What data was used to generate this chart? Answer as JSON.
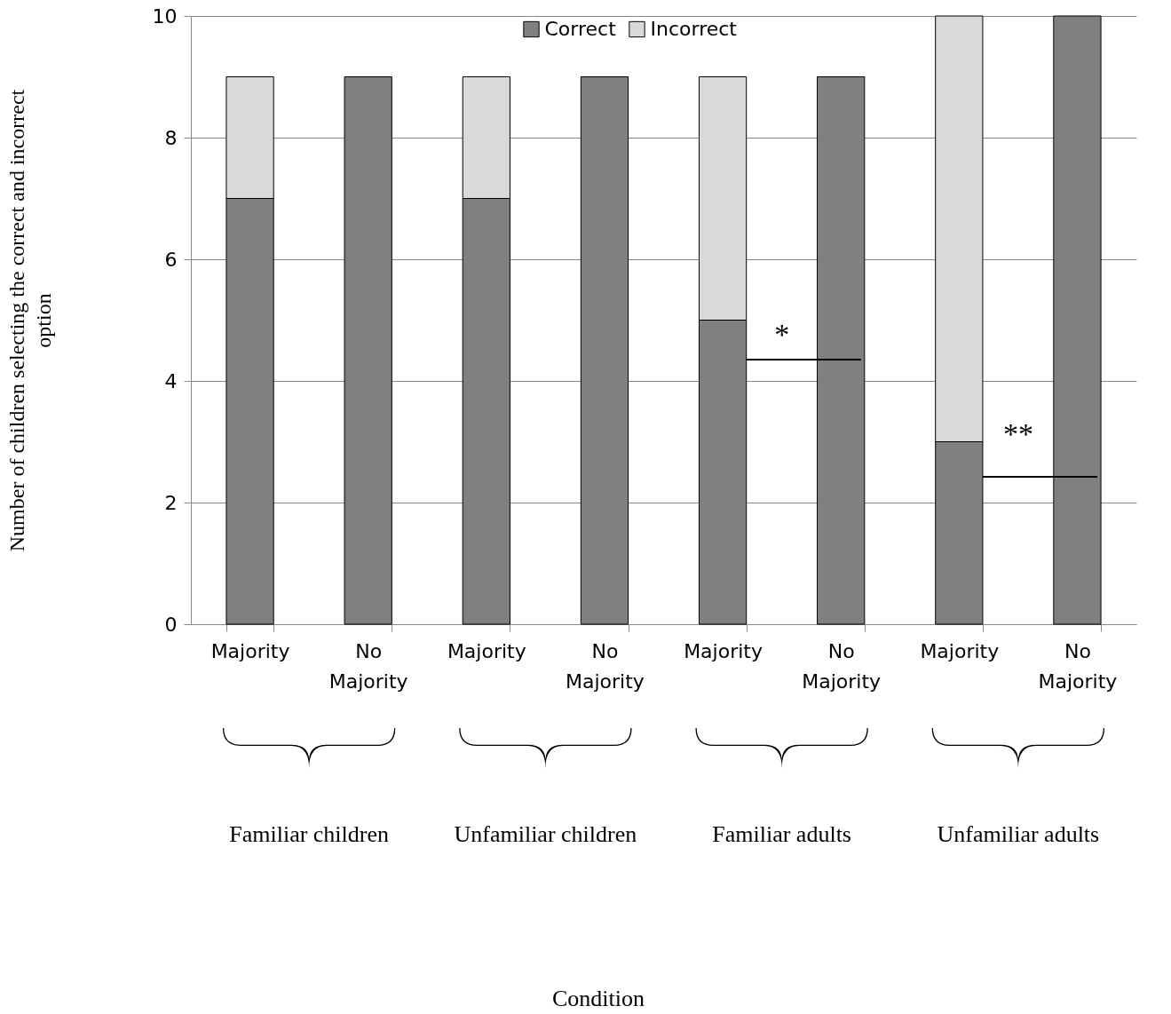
{
  "chart_data": {
    "type": "bar",
    "stacked": true,
    "categories": [
      "Majority",
      "No Majority",
      "Majority",
      "No Majority",
      "Majority",
      "No Majority",
      "Majority",
      "No Majority"
    ],
    "series": [
      {
        "name": "Correct",
        "color": "#808080",
        "values": [
          7,
          9,
          7,
          9,
          5,
          9,
          3,
          10
        ]
      },
      {
        "name": "Incorrect",
        "color": "#d9d9d9",
        "values": [
          2,
          0,
          2,
          0,
          4,
          0,
          7,
          0
        ]
      }
    ],
    "ylim": [
      0,
      10
    ],
    "yticks": [
      0,
      2,
      4,
      6,
      8,
      10
    ],
    "grid": "y",
    "legend": "top",
    "ylabel": "Number of children selecting the correct and incorrect option",
    "annotations": [
      "Familiar children",
      "Unfamiliar children",
      "Familiar adults",
      "Unfamiliar adults",
      "*",
      "**",
      "Condition"
    ]
  }
}
